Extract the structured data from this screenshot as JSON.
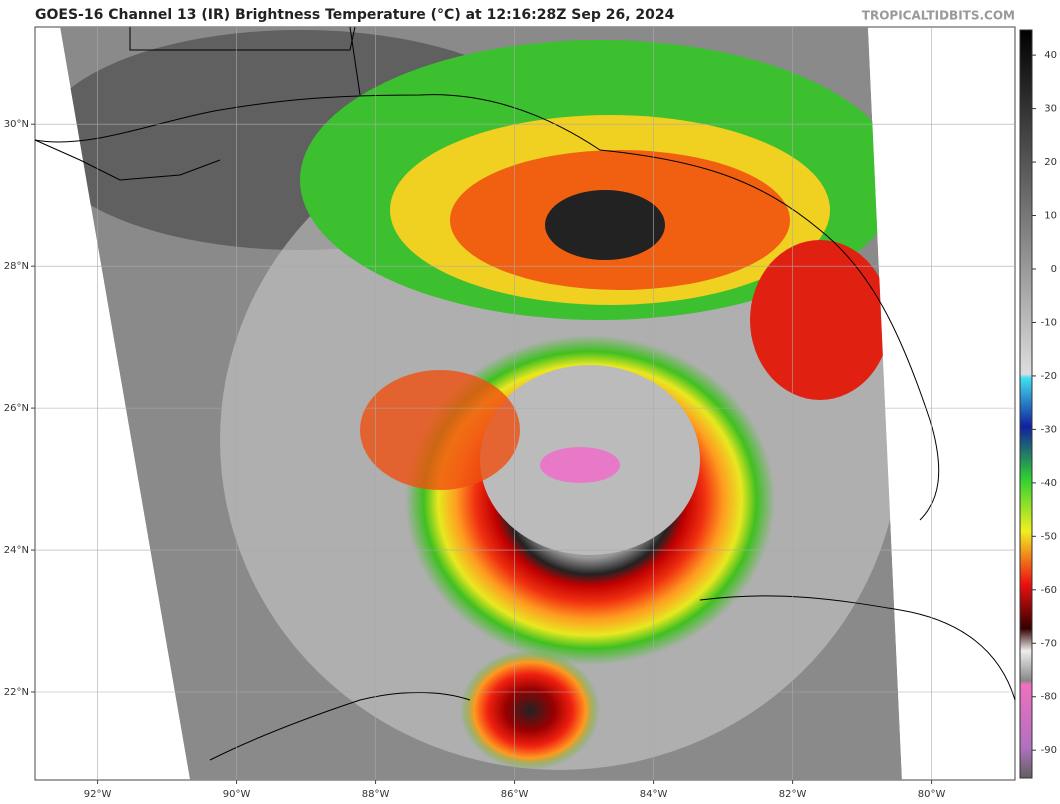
{
  "header": {
    "title": "GOES-16 Channel 13 (IR) Brightness Temperature (°C) at 12:16:28Z Sep 26, 2024",
    "watermark": "TROPICALTIDBITS.COM"
  },
  "map": {
    "xlim": [
      -92.9,
      -78.8
    ],
    "ylim": [
      20.76,
      31.37
    ],
    "lat_ticks": [
      {
        "value": 30,
        "label": "30°N"
      },
      {
        "value": 28,
        "label": "28°N"
      },
      {
        "value": 26,
        "label": "26°N"
      },
      {
        "value": 24,
        "label": "24°N"
      },
      {
        "value": 22,
        "label": "22°N"
      }
    ],
    "lon_ticks": [
      {
        "value": -92,
        "label": "92°W"
      },
      {
        "value": -90,
        "label": "90°W"
      },
      {
        "value": -88,
        "label": "88°W"
      },
      {
        "value": -86,
        "label": "86°W"
      },
      {
        "value": -84,
        "label": "84°W"
      },
      {
        "value": -82,
        "label": "82°W"
      },
      {
        "value": -80,
        "label": "80°W"
      }
    ]
  },
  "colorbar": {
    "lim": [
      -95.2,
      44.7
    ],
    "ticks": [
      40,
      30,
      20,
      10,
      0,
      -10,
      -20,
      -30,
      -40,
      -50,
      -60,
      -70,
      -80,
      -90
    ]
  }
}
